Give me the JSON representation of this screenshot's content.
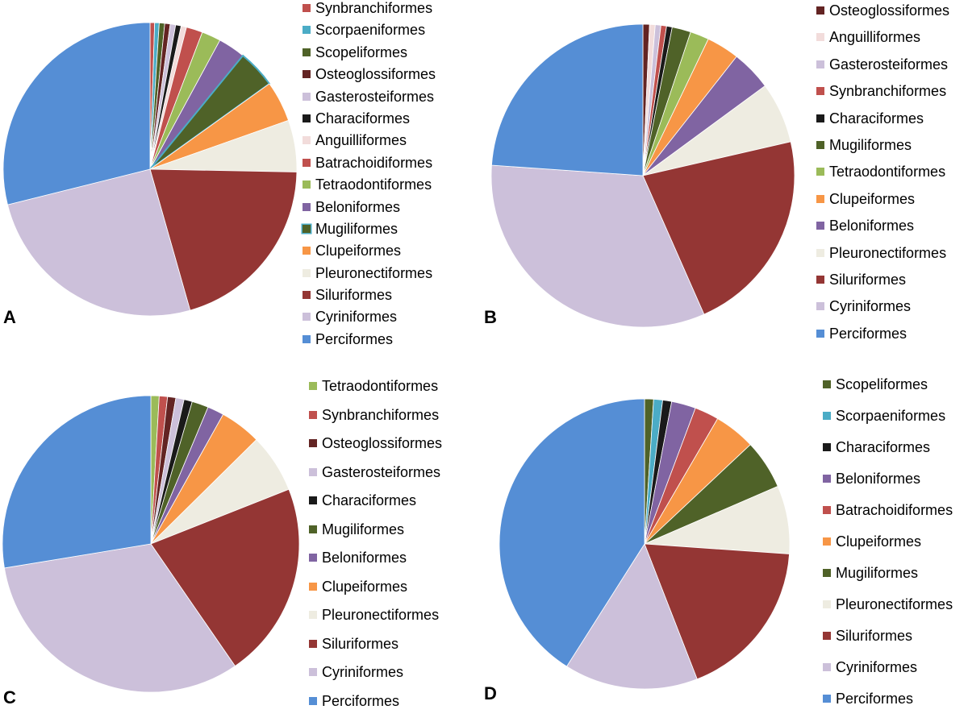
{
  "chart_data": [
    {
      "type": "pie",
      "panel_label": "A",
      "legend_position": "right",
      "legend": [
        "Synbranchiformes",
        "Scorpaeniformes",
        "Scopeliformes",
        "Osteoglossiformes",
        "Gasterosteiformes",
        "Characiformes",
        "Anguilliformes",
        "Batrachoidiformes",
        "Tetraodontiformes",
        "Beloniformes",
        "Mugiliformes",
        "Clupeiformes",
        "Pleuronectiformes",
        "Siluriformes",
        "Cyriniformes",
        "Perciformes"
      ],
      "slices": [
        {
          "label": "Synbranchiformes",
          "value": 0.5,
          "color": "#C0504D"
        },
        {
          "label": "Scorpaeniformes",
          "value": 0.5,
          "color": "#4BACC6"
        },
        {
          "label": "Scopeliformes",
          "value": 0.6,
          "color": "#4F6228"
        },
        {
          "label": "Osteoglossiformes",
          "value": 0.6,
          "color": "#632423"
        },
        {
          "label": "Gasterosteiformes",
          "value": 0.6,
          "color": "#CCC0DA"
        },
        {
          "label": "Characiformes",
          "value": 0.6,
          "color": "#1A1A1A"
        },
        {
          "label": "Anguilliformes",
          "value": 0.6,
          "color": "#F2DCDB"
        },
        {
          "label": "Batrachoidiformes",
          "value": 1.8,
          "color": "#C0504D"
        },
        {
          "label": "Tetraodontiformes",
          "value": 2.1,
          "color": "#9BBB59"
        },
        {
          "label": "Beloniformes",
          "value": 3.0,
          "color": "#8064A2"
        },
        {
          "label": "Mugiliformes",
          "value": 4.2,
          "color": "#4F6228",
          "outline": "#4BACC6"
        },
        {
          "label": "Clupeiformes",
          "value": 4.5,
          "color": "#F79646"
        },
        {
          "label": "Pleuronectiformes",
          "value": 5.7,
          "color": "#EEECE1"
        },
        {
          "label": "Siluriformes",
          "value": 20.3,
          "color": "#943634"
        },
        {
          "label": "Cyriniformes",
          "value": 25.5,
          "color": "#CCC0DA"
        },
        {
          "label": "Perciformes",
          "value": 28.9,
          "color": "#558ED5"
        }
      ]
    },
    {
      "type": "pie",
      "panel_label": "B",
      "legend_position": "right",
      "legend": [
        "Osteoglossiformes",
        "Anguilliformes",
        "Gasterosteiformes",
        "Synbranchiformes",
        "Characiformes",
        "Mugiliformes",
        "Tetraodontiformes",
        "Clupeiformes",
        "Beloniformes",
        "Pleuronectiformes",
        "Siluriformes",
        "Cyriniformes",
        "Perciformes"
      ],
      "slices": [
        {
          "label": "Osteoglossiformes",
          "value": 0.7,
          "color": "#632423"
        },
        {
          "label": "Anguilliformes",
          "value": 0.6,
          "color": "#F2DCDB"
        },
        {
          "label": "Gasterosteiformes",
          "value": 0.6,
          "color": "#CCC0DA"
        },
        {
          "label": "Synbranchiformes",
          "value": 0.6,
          "color": "#C0504D"
        },
        {
          "label": "Characiformes",
          "value": 0.6,
          "color": "#1A1A1A"
        },
        {
          "label": "Mugiliformes",
          "value": 2.0,
          "color": "#4F6228"
        },
        {
          "label": "Tetraodontiformes",
          "value": 2.0,
          "color": "#9BBB59"
        },
        {
          "label": "Clupeiformes",
          "value": 3.5,
          "color": "#F79646"
        },
        {
          "label": "Beloniformes",
          "value": 4.3,
          "color": "#8064A2"
        },
        {
          "label": "Pleuronectiformes",
          "value": 6.5,
          "color": "#EEECE1"
        },
        {
          "label": "Siluriformes",
          "value": 22.0,
          "color": "#943634"
        },
        {
          "label": "Cyriniformes",
          "value": 32.7,
          "color": "#CCC0DA"
        },
        {
          "label": "Perciformes",
          "value": 23.9,
          "color": "#558ED5"
        }
      ]
    },
    {
      "type": "pie",
      "panel_label": "C",
      "legend_position": "right",
      "legend": [
        "Tetraodontiformes",
        "Synbranchiformes",
        "Osteoglossiformes",
        "Gasterosteiformes",
        "Characiformes",
        "Mugiliformes",
        "Beloniformes",
        "Clupeiformes",
        "Pleuronectiformes",
        "Siluriformes",
        "Cyriniformes",
        "Perciformes"
      ],
      "slices": [
        {
          "label": "Tetraodontiformes",
          "value": 0.9,
          "color": "#9BBB59"
        },
        {
          "label": "Synbranchiformes",
          "value": 0.9,
          "color": "#C0504D"
        },
        {
          "label": "Osteoglossiformes",
          "value": 0.9,
          "color": "#632423"
        },
        {
          "label": "Gasterosteiformes",
          "value": 0.9,
          "color": "#CCC0DA"
        },
        {
          "label": "Characiformes",
          "value": 0.9,
          "color": "#1A1A1A"
        },
        {
          "label": "Mugiliformes",
          "value": 1.8,
          "color": "#4F6228"
        },
        {
          "label": "Beloniformes",
          "value": 1.8,
          "color": "#8064A2"
        },
        {
          "label": "Clupeiformes",
          "value": 4.5,
          "color": "#F79646"
        },
        {
          "label": "Pleuronectiformes",
          "value": 6.4,
          "color": "#EEECE1"
        },
        {
          "label": "Siluriformes",
          "value": 21.4,
          "color": "#943634"
        },
        {
          "label": "Cyriniformes",
          "value": 32.0,
          "color": "#CCC0DA"
        },
        {
          "label": "Perciformes",
          "value": 27.6,
          "color": "#558ED5"
        }
      ]
    },
    {
      "type": "pie",
      "panel_label": "D",
      "legend_position": "right",
      "legend": [
        "Scopeliformes",
        "Scorpaeniformes",
        "Characiformes",
        "Beloniformes",
        "Batrachoidiformes",
        "Clupeiformes",
        "Mugiliformes",
        "Pleuronectiformes",
        "Siluriformes",
        "Cyriniformes",
        "Perciformes"
      ],
      "slices": [
        {
          "label": "Scopeliformes",
          "value": 1.0,
          "color": "#4F6228"
        },
        {
          "label": "Scorpaeniformes",
          "value": 1.0,
          "color": "#4BACC6"
        },
        {
          "label": "Characiformes",
          "value": 1.0,
          "color": "#1A1A1A"
        },
        {
          "label": "Beloniformes",
          "value": 2.7,
          "color": "#8064A2"
        },
        {
          "label": "Batrachoidiformes",
          "value": 2.7,
          "color": "#C0504D"
        },
        {
          "label": "Clupeiformes",
          "value": 4.6,
          "color": "#F79646"
        },
        {
          "label": "Mugiliformes",
          "value": 5.5,
          "color": "#4F6228"
        },
        {
          "label": "Pleuronectiformes",
          "value": 7.6,
          "color": "#EEECE1"
        },
        {
          "label": "Siluriformes",
          "value": 18.0,
          "color": "#943634"
        },
        {
          "label": "Cyriniformes",
          "value": 14.9,
          "color": "#CCC0DA"
        },
        {
          "label": "Perciformes",
          "value": 41.0,
          "color": "#558ED5"
        }
      ]
    }
  ]
}
